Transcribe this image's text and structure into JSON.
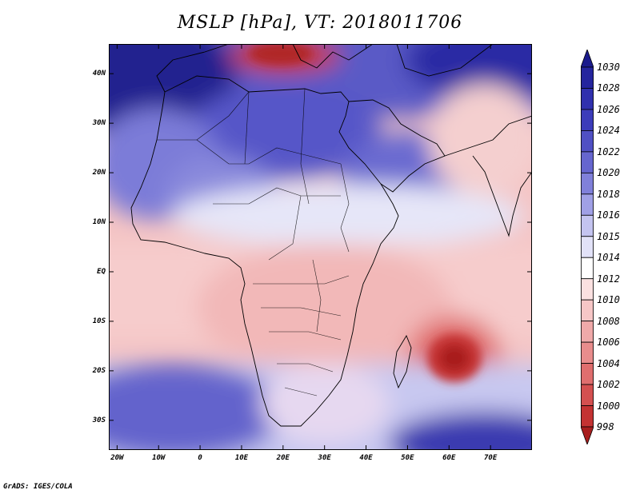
{
  "title": "MSLP [hPa], VT: 2018011706",
  "footer": "GrADS: IGES/COLA",
  "lat_labels": [
    "40N",
    "30N",
    "20N",
    "10N",
    "EQ",
    "10S",
    "20S",
    "30S"
  ],
  "lat_values": [
    40,
    30,
    20,
    10,
    0,
    -10,
    -20,
    -30
  ],
  "lon_labels": [
    "20W",
    "10W",
    "0",
    "10E",
    "20E",
    "30E",
    "40E",
    "50E",
    "60E",
    "70E"
  ],
  "lon_values": [
    -20,
    -10,
    0,
    10,
    20,
    30,
    40,
    50,
    60,
    70
  ],
  "map_extent": {
    "lon": [
      -22,
      80
    ],
    "lat": [
      -36,
      46
    ]
  },
  "colorbar": {
    "labels": [
      "1030",
      "1028",
      "1026",
      "1024",
      "1022",
      "1020",
      "1018",
      "1016",
      "1015",
      "1014",
      "1012",
      "1010",
      "1008",
      "1006",
      "1004",
      "1002",
      "1000",
      "998"
    ],
    "colors": [
      "#1b1b8c",
      "#25259e",
      "#3030ae",
      "#3c3cba",
      "#5050c4",
      "#6666cf",
      "#8080da",
      "#a0a0e6",
      "#c4c4f0",
      "#e2e2f8",
      "#ffffff",
      "#fbe1e1",
      "#f6c6c6",
      "#efa9a9",
      "#e88c8c",
      "#df6e6e",
      "#d45050",
      "#c43333",
      "#a81e1e"
    ]
  },
  "colors": {
    "background": "#ffffff",
    "border": "#000000"
  }
}
